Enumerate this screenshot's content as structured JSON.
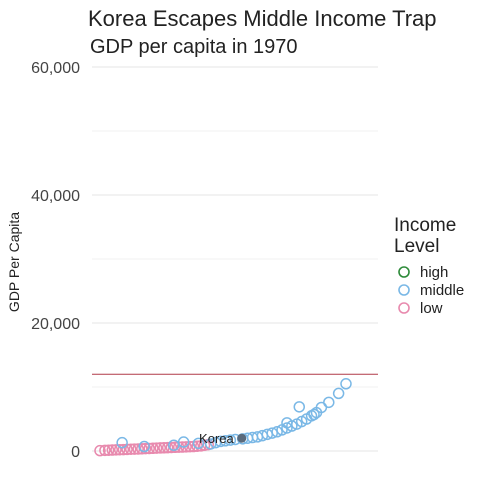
{
  "chart_data": {
    "type": "scatter",
    "title": "Korea Escapes Middle Income Trap",
    "subtitle": "GDP per capita in 1970",
    "ylabel": "GDP Per Capita",
    "xlabel": "",
    "ylim": [
      0,
      60000
    ],
    "yticks": [
      0,
      20000,
      40000,
      60000
    ],
    "ytick_labels": [
      "0",
      "20,000",
      "40,000",
      "60,000"
    ],
    "grid": true,
    "legend_position": "right",
    "legend": {
      "title": [
        "Income",
        "Level"
      ],
      "entries": [
        {
          "label": "high",
          "color": "#2e8b3a"
        },
        {
          "label": "middle",
          "color": "#7ab8e6"
        },
        {
          "label": "low",
          "color": "#e88aae"
        }
      ]
    },
    "reference_line": {
      "y": 12000,
      "color": "#b03a48"
    },
    "annotation": {
      "label": "Korea",
      "value": 2000,
      "rank": 0.56,
      "color": "#5b6b7c"
    },
    "series": [
      {
        "name": "low",
        "color": "#e88aae",
        "points": [
          {
            "rank": 0.0,
            "value": 50
          },
          {
            "rank": 0.02,
            "value": 100
          },
          {
            "rank": 0.035,
            "value": 120
          },
          {
            "rank": 0.05,
            "value": 150
          },
          {
            "rank": 0.065,
            "value": 180
          },
          {
            "rank": 0.08,
            "value": 200
          },
          {
            "rank": 0.095,
            "value": 220
          },
          {
            "rank": 0.11,
            "value": 250
          },
          {
            "rank": 0.125,
            "value": 280
          },
          {
            "rank": 0.14,
            "value": 300
          },
          {
            "rank": 0.155,
            "value": 320
          },
          {
            "rank": 0.17,
            "value": 350
          },
          {
            "rank": 0.185,
            "value": 380
          },
          {
            "rank": 0.2,
            "value": 400
          },
          {
            "rank": 0.215,
            "value": 420
          },
          {
            "rank": 0.23,
            "value": 450
          },
          {
            "rank": 0.245,
            "value": 480
          },
          {
            "rank": 0.26,
            "value": 500
          },
          {
            "rank": 0.275,
            "value": 520
          },
          {
            "rank": 0.29,
            "value": 550
          },
          {
            "rank": 0.305,
            "value": 580
          },
          {
            "rank": 0.32,
            "value": 600
          },
          {
            "rank": 0.335,
            "value": 620
          },
          {
            "rank": 0.35,
            "value": 650
          },
          {
            "rank": 0.365,
            "value": 680
          },
          {
            "rank": 0.38,
            "value": 700
          },
          {
            "rank": 0.395,
            "value": 750
          },
          {
            "rank": 0.41,
            "value": 800
          },
          {
            "rank": 0.425,
            "value": 900
          },
          {
            "rank": 0.44,
            "value": 1000
          }
        ]
      },
      {
        "name": "middle",
        "color": "#7ab8e6",
        "points": [
          {
            "rank": 0.09,
            "value": 1300
          },
          {
            "rank": 0.18,
            "value": 700
          },
          {
            "rank": 0.3,
            "value": 900
          },
          {
            "rank": 0.34,
            "value": 1400
          },
          {
            "rank": 0.4,
            "value": 1200
          },
          {
            "rank": 0.45,
            "value": 1100
          },
          {
            "rank": 0.47,
            "value": 1300
          },
          {
            "rank": 0.49,
            "value": 1500
          },
          {
            "rank": 0.51,
            "value": 1600
          },
          {
            "rank": 0.53,
            "value": 1700
          },
          {
            "rank": 0.55,
            "value": 1800
          },
          {
            "rank": 0.58,
            "value": 1900
          },
          {
            "rank": 0.6,
            "value": 2000
          },
          {
            "rank": 0.62,
            "value": 2100
          },
          {
            "rank": 0.64,
            "value": 2200
          },
          {
            "rank": 0.66,
            "value": 2400
          },
          {
            "rank": 0.68,
            "value": 2600
          },
          {
            "rank": 0.7,
            "value": 2800
          },
          {
            "rank": 0.72,
            "value": 3000
          },
          {
            "rank": 0.74,
            "value": 3300
          },
          {
            "rank": 0.76,
            "value": 3600
          },
          {
            "rank": 0.78,
            "value": 3900
          },
          {
            "rank": 0.8,
            "value": 4200
          },
          {
            "rank": 0.82,
            "value": 4600
          },
          {
            "rank": 0.84,
            "value": 5000
          },
          {
            "rank": 0.86,
            "value": 5500
          },
          {
            "rank": 0.88,
            "value": 6000
          },
          {
            "rank": 0.9,
            "value": 6800
          },
          {
            "rank": 0.93,
            "value": 7600
          },
          {
            "rank": 0.97,
            "value": 9000
          },
          {
            "rank": 1.0,
            "value": 10500
          },
          {
            "rank": 0.81,
            "value": 6900
          },
          {
            "rank": 0.76,
            "value": 4400
          },
          {
            "rank": 0.87,
            "value": 5700
          }
        ]
      }
    ]
  }
}
